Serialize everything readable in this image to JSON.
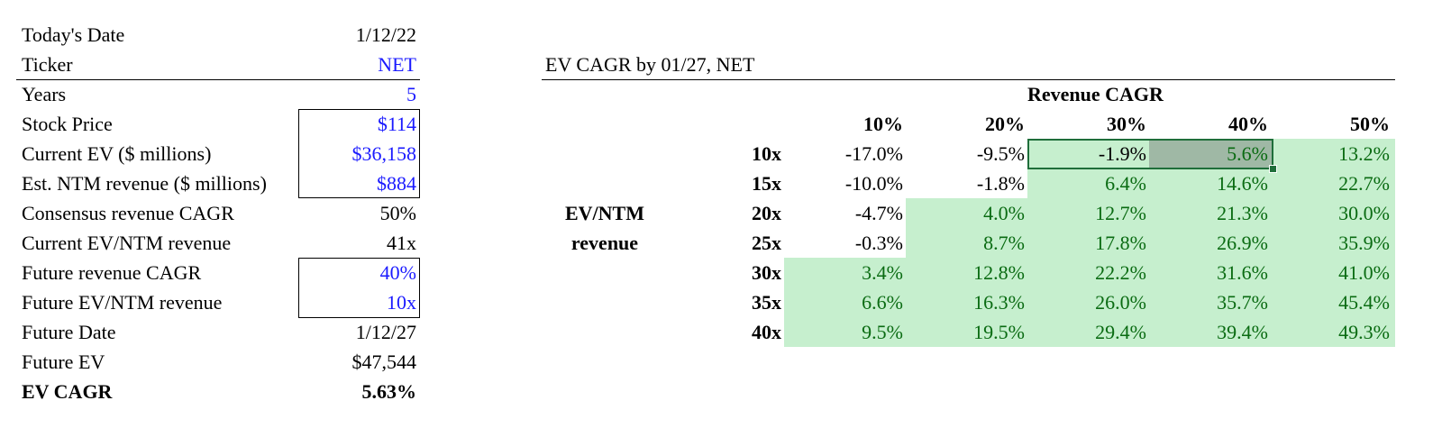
{
  "inputs": [
    {
      "label": "Today's Date",
      "value": "1/12/22"
    },
    {
      "label": "Ticker",
      "value": "NET"
    },
    {
      "label": "Years",
      "value": "5"
    },
    {
      "label": "Stock Price",
      "value": "$114"
    },
    {
      "label": "Current EV ($ millions)",
      "value": "$36,158"
    },
    {
      "label": "Est. NTM revenue ($ millions)",
      "value": "$884"
    },
    {
      "label": "Consensus revenue CAGR",
      "value": "50%"
    },
    {
      "label": "Current EV/NTM revenue",
      "value": "41x"
    },
    {
      "label": "Future revenue CAGR",
      "value": "40%"
    },
    {
      "label": "Future EV/NTM revenue",
      "value": "10x"
    },
    {
      "label": "Future Date",
      "value": "1/12/27"
    },
    {
      "label": "Future EV",
      "value": "$47,544"
    },
    {
      "label": "EV CAGR",
      "value": "5.63%"
    }
  ],
  "sensitivity": {
    "title": "EV CAGR by 01/27, NET",
    "col_header": "Revenue CAGR",
    "row_header_line1": "EV/NTM",
    "row_header_line2": "revenue",
    "cols": [
      "10%",
      "20%",
      "30%",
      "40%",
      "50%"
    ],
    "rows": [
      {
        "label": "10x",
        "values": [
          "-17.0%",
          "-9.5%",
          "-1.9%",
          "5.6%",
          "13.2%"
        ]
      },
      {
        "label": "15x",
        "values": [
          "-10.0%",
          "-1.8%",
          "6.4%",
          "14.6%",
          "22.7%"
        ]
      },
      {
        "label": "20x",
        "values": [
          "-4.7%",
          "4.0%",
          "12.7%",
          "21.3%",
          "30.0%"
        ]
      },
      {
        "label": "25x",
        "values": [
          "-0.3%",
          "8.7%",
          "17.8%",
          "26.9%",
          "35.9%"
        ]
      },
      {
        "label": "30x",
        "values": [
          "3.4%",
          "12.8%",
          "22.2%",
          "31.6%",
          "41.0%"
        ]
      },
      {
        "label": "35x",
        "values": [
          "6.6%",
          "16.3%",
          "26.0%",
          "35.7%",
          "45.4%"
        ]
      },
      {
        "label": "40x",
        "values": [
          "9.5%",
          "19.5%",
          "29.4%",
          "39.4%",
          "49.3%"
        ]
      }
    ],
    "selected_cell": "5.6%"
  },
  "colors": {
    "input_blue": "#1a1aff",
    "positive_fill": "#c6efce",
    "positive_text": "#0a6b12",
    "selection_border": "#1f6e3a"
  }
}
